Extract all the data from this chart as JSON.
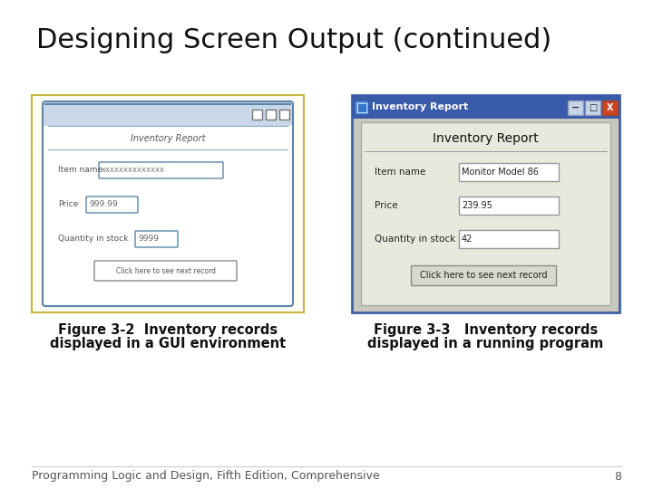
{
  "title": "Designing Screen Output (continued)",
  "title_fontsize": 22,
  "fig1_caption_line1": "Figure 3-2  Inventory records",
  "fig1_caption_line2": "displayed in a GUI environment",
  "fig2_caption_line1": "Figure 3-3   Inventory records",
  "fig2_caption_line2": "displayed in a running program",
  "caption_fontsize": 10.5,
  "footer_text": "Programming Logic and Design, Fifth Edition, Comprehensive",
  "footer_page": "8",
  "footer_fontsize": 9,
  "bg_color": "#ffffff",
  "fig1_border_color": "#c8b840",
  "fig2_title_bar_color": "#3a5baa",
  "sketch_color": "#5a85aa",
  "title_bar_bg": "#c8d8e8"
}
